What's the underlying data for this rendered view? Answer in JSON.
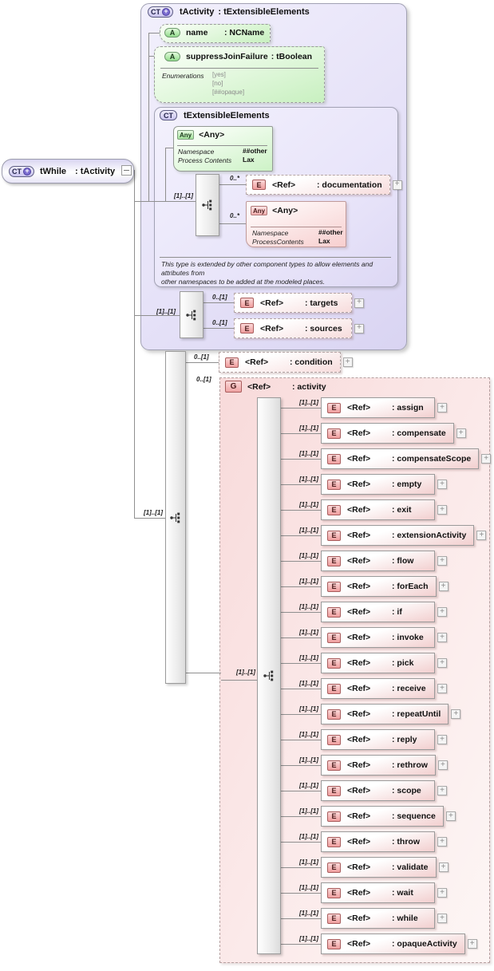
{
  "root_element": {
    "badge": "CT",
    "name": "tWhile",
    "type": ": tActivity"
  },
  "tActivity": {
    "badge": "CT",
    "title": "tActivity",
    "type": ": tExtensibleElements",
    "attributes": {
      "name": {
        "badge": "A",
        "label": "name",
        "type": ": NCName"
      },
      "suppressJoinFailure": {
        "badge": "A",
        "label": "suppressJoinFailure",
        "type": ": tBoolean",
        "enum_label": "Enumerations",
        "enum_values": [
          "[yes]",
          "[no]",
          "[##opaque]"
        ]
      }
    },
    "extensible": {
      "badge": "CT",
      "title": "tExtensibleElements",
      "any_attr": {
        "badge": "Any",
        "label": "<Any>",
        "rows": [
          [
            "Namespace",
            "##other"
          ],
          [
            "Process Contents",
            "Lax"
          ]
        ]
      },
      "seq_cardinality": "[1]..[1]",
      "documentation": {
        "cardinality": "0..*",
        "badge": "E",
        "ref": "<Ref>",
        "name": ": documentation"
      },
      "any_elem": {
        "cardinality": "0..*",
        "badge": "Any",
        "label": "<Any>",
        "rows": [
          [
            "Namespace",
            "##other"
          ],
          [
            "ProcessContents",
            "Lax"
          ]
        ]
      },
      "note_lines": [
        "This type is extended by other component types to allow elements and",
        "attributes from",
        "other namespaces to be added at the modeled places."
      ]
    },
    "seq2_cardinality": "[1]..[1]",
    "targets": {
      "cardinality": "0..[1]",
      "badge": "E",
      "ref": "<Ref>",
      "name": ": targets"
    },
    "sources": {
      "cardinality": "0..[1]",
      "badge": "E",
      "ref": "<Ref>",
      "name": ": sources"
    }
  },
  "main_seq_cardinality": "[1]..[1]",
  "condition": {
    "cardinality": "0..[1]",
    "badge": "E",
    "ref": "<Ref>",
    "name": ": condition"
  },
  "activity_group": {
    "cardinality": "0..[1]",
    "badge": "G",
    "ref": "<Ref>",
    "name": ": activity",
    "choice_cardinality": "[1]..[1]",
    "item_cardinality": "[1]..[1]",
    "item_badge": "E",
    "item_ref": "<Ref>",
    "items": [
      "assign",
      "compensate",
      "compensateScope",
      "empty",
      "exit",
      "extensionActivity",
      "flow",
      "forEach",
      "if",
      "invoke",
      "pick",
      "receive",
      "repeatUntil",
      "reply",
      "rethrow",
      "scope",
      "sequence",
      "throw",
      "validate",
      "wait",
      "while",
      "opaqueActivity"
    ]
  },
  "colors": {
    "type_fill": "#e6e2f8",
    "group_fill": "#f8dada",
    "element_accent": "#ef9e9e",
    "attribute_accent": "#93dd8d",
    "line": "#8f8f8f"
  }
}
